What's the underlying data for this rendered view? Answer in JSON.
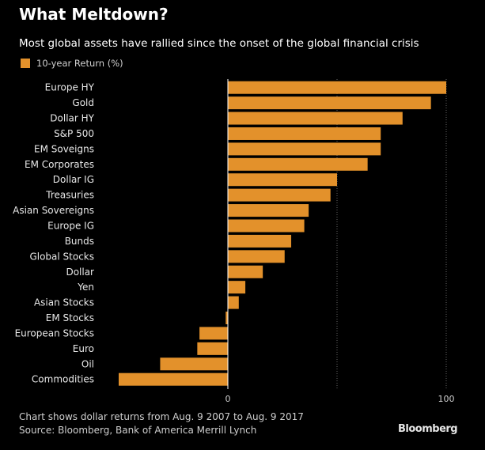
{
  "header": {
    "title": "What Meltdown?",
    "subtitle": "Most global assets have rallied since the onset of the global financial crisis"
  },
  "legend": {
    "label": "10-year Return (%)"
  },
  "colors": {
    "bar": "#e3912b",
    "background": "#000000",
    "gridline": "#666666"
  },
  "footer": {
    "note": "Chart shows dollar returns from Aug. 9 2007 to Aug. 9 2017",
    "source": "Source: Bloomberg, Bank of America Merrill Lynch",
    "brand": "Bloomberg"
  },
  "chart_data": {
    "type": "bar",
    "orientation": "horizontal",
    "title": "What Meltdown?",
    "subtitle": "Most global assets have rallied since the onset of the global financial crisis",
    "categories": [
      "Europe HY",
      "Gold",
      "Dollar HY",
      "S&P 500",
      "EM Soveigns",
      "EM Corporates",
      "Dollar IG",
      "Treasuries",
      "Asian Sovereigns",
      "Europe IG",
      "Bunds",
      "Global Stocks",
      "Dollar",
      "Yen",
      "Asian Stocks",
      "EM Stocks",
      "European Stocks",
      "Euro",
      "Oil",
      "Commodities"
    ],
    "series": [
      {
        "name": "10-year Return (%)",
        "values": [
          100,
          93,
          80,
          70,
          70,
          64,
          50,
          47,
          37,
          35,
          29,
          26,
          16,
          8,
          5,
          -1,
          -13,
          -14,
          -31,
          -50
        ]
      }
    ],
    "xlim": [
      -50,
      100
    ],
    "xticks": [
      0,
      100
    ],
    "grid": true,
    "gridlines": [
      50,
      100
    ],
    "legend_position": "top-left"
  }
}
